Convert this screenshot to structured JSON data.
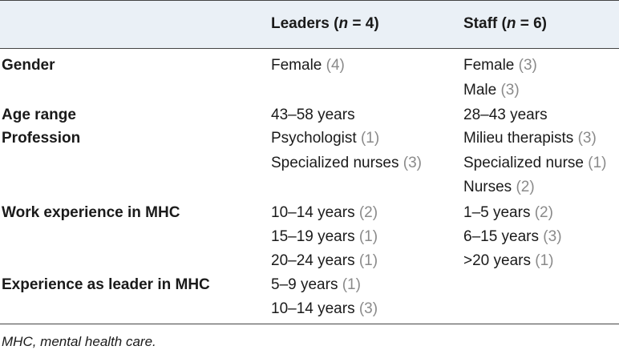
{
  "header": {
    "leaders": {
      "pre": "Leaders (",
      "n": "n",
      "post": " = 4)"
    },
    "staff": {
      "pre": "Staff (",
      "n": "n",
      "post": " = 6)"
    }
  },
  "rows": {
    "gender": {
      "label": "Gender",
      "leaders": [
        {
          "text": "Female ",
          "count": "(4)"
        }
      ],
      "staff": [
        {
          "text": "Female ",
          "count": "(3)"
        },
        {
          "text": "Male ",
          "count": "(3)"
        }
      ]
    },
    "age": {
      "label": "Age range",
      "leaders": [
        {
          "text": "43–58 years",
          "count": ""
        }
      ],
      "staff": [
        {
          "text": "28–43 years",
          "count": ""
        }
      ]
    },
    "profession": {
      "label": "Profession",
      "leaders": [
        {
          "text": "Psychologist ",
          "count": "(1)"
        },
        {
          "text": "Specialized nurses ",
          "count": "(3)"
        }
      ],
      "staff": [
        {
          "text": "Milieu therapists ",
          "count": "(3)"
        },
        {
          "text": "Specialized nurse ",
          "count": "(1)"
        },
        {
          "text": "Nurses ",
          "count": "(2)"
        }
      ]
    },
    "work": {
      "label": "Work experience in MHC",
      "leaders": [
        {
          "text": "10–14 years ",
          "count": "(2)"
        },
        {
          "text": "15–19 years ",
          "count": "(1)"
        },
        {
          "text": "20–24 years ",
          "count": "(1)"
        }
      ],
      "staff": [
        {
          "text": "1–5 years ",
          "count": "(2)"
        },
        {
          "text": "6–15 years ",
          "count": "(3)"
        },
        {
          "text": ">20 years ",
          "count": "(1)"
        }
      ]
    },
    "leader_exp": {
      "label": "Experience as leader in MHC",
      "leaders": [
        {
          "text": "5–9 years ",
          "count": "(1)"
        },
        {
          "text": "10–14 years ",
          "count": "(3)"
        }
      ],
      "staff": []
    }
  },
  "footnote": "MHC, mental health care."
}
